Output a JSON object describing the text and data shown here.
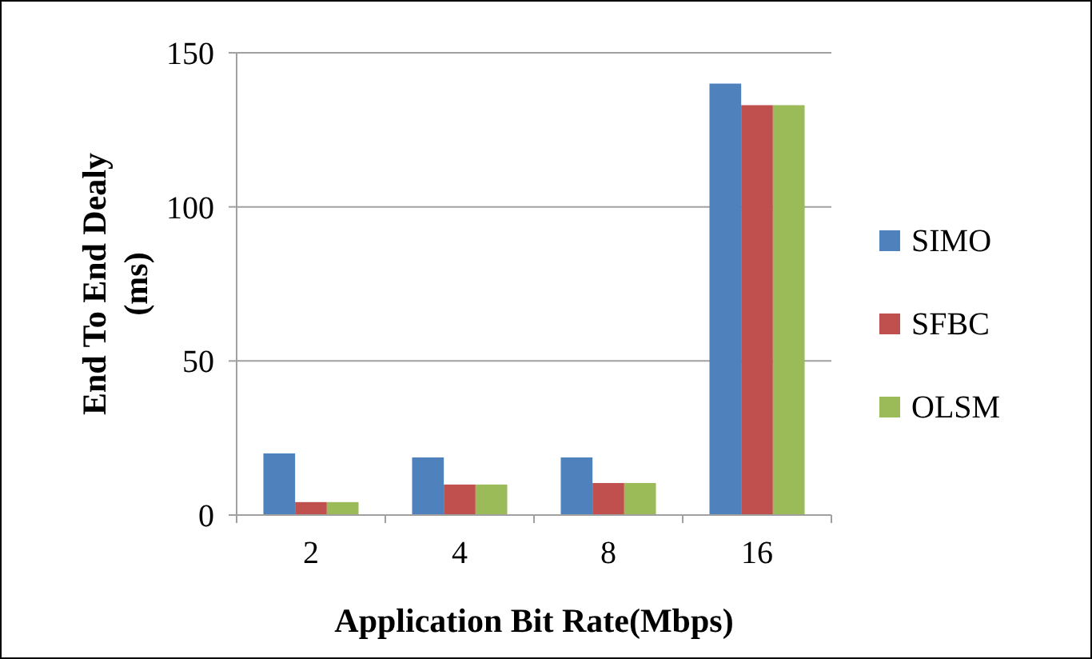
{
  "chart_data": {
    "type": "bar",
    "xlabel": "Application Bit Rate(Mbps)",
    "ylabel": "End To End Dealy (ms)",
    "categories": [
      "2",
      "4",
      "8",
      "16"
    ],
    "series": [
      {
        "name": "SIMO",
        "color": "#4f81bd",
        "values": [
          20,
          18.7,
          18.7,
          140
        ]
      },
      {
        "name": "SFBC",
        "color": "#c0504d",
        "values": [
          4.2,
          9.9,
          10.4,
          133
        ]
      },
      {
        "name": "OLSM",
        "color": "#9bbb59",
        "values": [
          4.2,
          9.9,
          10.4,
          133
        ]
      }
    ],
    "ylim": [
      0,
      150
    ],
    "yticks": [
      0,
      50,
      100,
      150
    ],
    "grid": "y",
    "legend": "right"
  }
}
